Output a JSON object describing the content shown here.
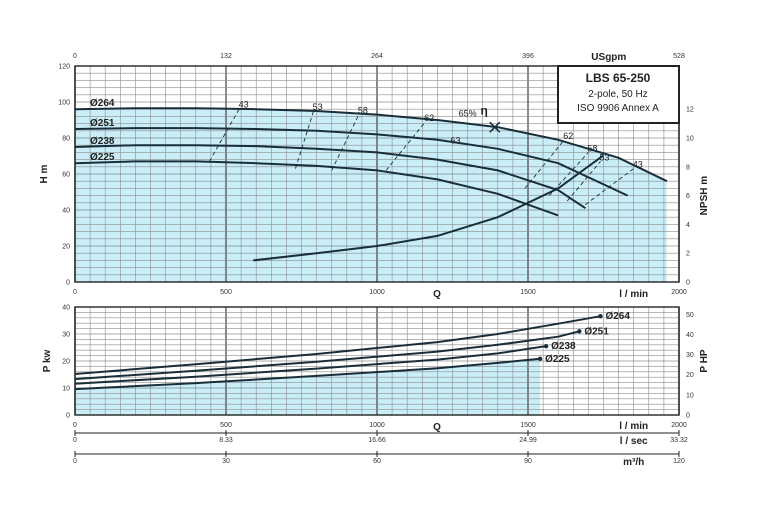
{
  "colors": {
    "fill": "#c9eef8",
    "grid": "#8d8d8d",
    "grid_major": "#5a5a5a",
    "curve": "#1a2e3a",
    "frame": "#222222"
  },
  "chart_data": [
    {
      "type": "line",
      "title": "LBS 65-250",
      "subtitle_lines": [
        "2-pole, 50 Hz",
        "ISO 9906 Annex A"
      ],
      "ylabel": "H m",
      "xlabel": "Q",
      "x_unit": "l / min",
      "xlim": [
        0,
        2000
      ],
      "ylim": [
        0,
        120
      ],
      "x_ticks": [
        0,
        500,
        1000,
        1500,
        2000
      ],
      "y_ticks": [
        0,
        20,
        40,
        60,
        80,
        100,
        120
      ],
      "top_axis": {
        "label": "USgpm",
        "ticks": [
          "0",
          "132",
          "264",
          "396",
          "528"
        ]
      },
      "series": [
        {
          "name": "Ø264",
          "x": [
            0,
            200,
            400,
            600,
            800,
            1000,
            1200,
            1400,
            1600,
            1800,
            1960
          ],
          "y": [
            96,
            96.5,
            96.5,
            96,
            95,
            93,
            90,
            86,
            79,
            69,
            56
          ]
        },
        {
          "name": "Ø251",
          "x": [
            0,
            200,
            400,
            600,
            800,
            1000,
            1200,
            1400,
            1600,
            1830
          ],
          "y": [
            85,
            85.5,
            85.5,
            85,
            84,
            82,
            79,
            74,
            66,
            48
          ]
        },
        {
          "name": "Ø238",
          "x": [
            0,
            200,
            400,
            600,
            800,
            1000,
            1200,
            1400,
            1600,
            1690
          ],
          "y": [
            75,
            76,
            76,
            75.5,
            74,
            72,
            68,
            62,
            51,
            41
          ]
        },
        {
          "name": "Ø225",
          "x": [
            0,
            200,
            400,
            600,
            800,
            1000,
            1200,
            1400,
            1600
          ],
          "y": [
            66,
            67,
            67,
            66,
            64.5,
            62,
            57,
            49,
            37
          ]
        }
      ],
      "efficiency_lines": [
        {
          "label": "43",
          "x": [
            445,
            545
          ],
          "y": [
            67,
            96.5
          ]
        },
        {
          "label": "53",
          "x": [
            730,
            790
          ],
          "y": [
            63,
            95
          ]
        },
        {
          "label": "58",
          "x": [
            850,
            940
          ],
          "y": [
            62,
            93
          ]
        },
        {
          "label": "62",
          "x": [
            1030,
            1160
          ],
          "y": [
            62,
            89
          ]
        },
        {
          "label": "62",
          "x": [
            1490,
            1620
          ],
          "y": [
            52,
            79
          ]
        },
        {
          "label": "58",
          "x": [
            1570,
            1700
          ],
          "y": [
            48,
            72
          ]
        },
        {
          "label": "53",
          "x": [
            1630,
            1740
          ],
          "y": [
            45,
            67
          ]
        },
        {
          "label": "43",
          "x": [
            1690,
            1850
          ],
          "y": [
            43,
            63
          ]
        }
      ],
      "efficiency_extra_labels": [
        {
          "label": "63",
          "x": 1260,
          "y": 77
        },
        {
          "label": "65%",
          "x": 1300,
          "y": 92
        }
      ],
      "bep_marker": {
        "x": 1390,
        "y": 86
      },
      "eta_symbol": "η",
      "npsh": {
        "label": "NPSH m",
        "ticks": [
          0,
          2,
          4,
          6,
          8,
          10,
          12
        ],
        "x": [
          590,
          800,
          1000,
          1200,
          1400,
          1600,
          1750
        ],
        "y": [
          1.5,
          2.0,
          2.5,
          3.2,
          4.5,
          6.5,
          8.8
        ]
      }
    },
    {
      "type": "line",
      "ylabel": "P kw",
      "ylabel_right": "P HP",
      "xlabel": "Q",
      "xlim": [
        0,
        2000
      ],
      "ylim": [
        0,
        40
      ],
      "y_ticks": [
        0,
        10,
        20,
        30,
        40
      ],
      "y_ticks_right": [
        0,
        10,
        20,
        30,
        40,
        50
      ],
      "x_axes": [
        {
          "unit": "l / min",
          "ticks": [
            "0",
            "500",
            "1000",
            "1500",
            "2000"
          ]
        },
        {
          "unit": "l / sec",
          "ticks": [
            "0",
            "8.33",
            "16.66",
            "24.99",
            "33.32"
          ]
        },
        {
          "unit": "m³/h",
          "ticks": [
            "0",
            "30",
            "60",
            "90",
            "120"
          ]
        }
      ],
      "series": [
        {
          "name": "Ø264",
          "x": [
            0,
            400,
            800,
            1200,
            1400,
            1600,
            1740
          ],
          "y": [
            15.2,
            18.8,
            22.6,
            27,
            30,
            33.8,
            36.6
          ]
        },
        {
          "name": "Ø251",
          "x": [
            0,
            400,
            800,
            1200,
            1400,
            1600,
            1670
          ],
          "y": [
            13.3,
            16.4,
            19.7,
            23.5,
            26,
            29,
            31
          ]
        },
        {
          "name": "Ø238",
          "x": [
            0,
            400,
            800,
            1200,
            1400,
            1560
          ],
          "y": [
            11.6,
            14.2,
            17.2,
            20.5,
            22.8,
            25.5
          ]
        },
        {
          "name": "Ø225",
          "x": [
            0,
            400,
            800,
            1200,
            1400,
            1540
          ],
          "y": [
            9.6,
            11.8,
            14.5,
            17.3,
            19.3,
            20.8
          ]
        }
      ]
    }
  ]
}
